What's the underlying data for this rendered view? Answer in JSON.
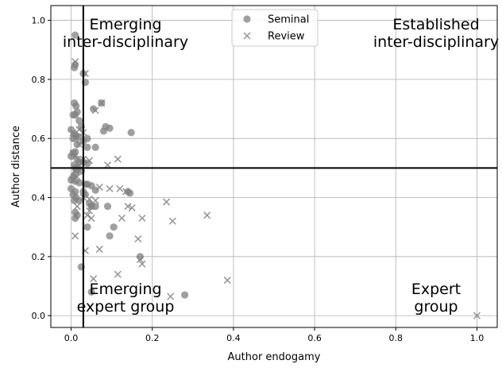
{
  "chart_data": {
    "type": "scatter",
    "xlabel": "Author endogamy",
    "ylabel": "Author distance",
    "xlim": [
      -0.05,
      1.05
    ],
    "ylim": [
      -0.04,
      1.05
    ],
    "x_ticks": [
      "0.0",
      "0.2",
      "0.4",
      "0.6",
      "0.8",
      "1.0"
    ],
    "y_ticks": [
      "0.0",
      "0.2",
      "0.4",
      "0.6",
      "0.8",
      "1.0"
    ],
    "grid": true,
    "legend_position": "top-center",
    "reference_lines": {
      "vertical_x": 0.03,
      "horizontal_y": 0.5
    },
    "quadrant_labels": [
      {
        "line1": "Emerging",
        "line2": "inter-disciplinary",
        "position": "top-left"
      },
      {
        "line1": "Established",
        "line2": "inter-disciplinary",
        "position": "top-right"
      },
      {
        "line1": "Emerging",
        "line2": "expert group",
        "position": "bottom-left"
      },
      {
        "line1": "Expert",
        "line2": "group",
        "position": "bottom-right"
      }
    ],
    "series": [
      {
        "name": "Seminal",
        "marker": "circle",
        "color": "#808080",
        "points": [
          [
            0.01,
            0.95
          ],
          [
            0.01,
            0.85
          ],
          [
            0.008,
            0.84
          ],
          [
            0.03,
            0.82
          ],
          [
            0.035,
            0.79
          ],
          [
            0.008,
            0.72
          ],
          [
            0.012,
            0.71
          ],
          [
            0.015,
            0.69
          ],
          [
            0.01,
            0.68
          ],
          [
            0.005,
            0.68
          ],
          [
            0.055,
            0.7
          ],
          [
            0.075,
            0.72
          ],
          [
            0.02,
            0.66
          ],
          [
            0.025,
            0.64
          ],
          [
            0.085,
            0.64
          ],
          [
            0.095,
            0.635
          ],
          [
            0.08,
            0.625
          ],
          [
            0.148,
            0.62
          ],
          [
            0.0,
            0.63
          ],
          [
            0.008,
            0.615
          ],
          [
            0.012,
            0.61
          ],
          [
            0.02,
            0.605
          ],
          [
            0.005,
            0.6
          ],
          [
            0.04,
            0.6
          ],
          [
            0.03,
            0.59
          ],
          [
            0.015,
            0.58
          ],
          [
            0.04,
            0.57
          ],
          [
            0.06,
            0.57
          ],
          [
            0.01,
            0.555
          ],
          [
            0.005,
            0.55
          ],
          [
            0.0,
            0.54
          ],
          [
            0.015,
            0.53
          ],
          [
            0.02,
            0.52
          ],
          [
            0.03,
            0.52
          ],
          [
            0.04,
            0.515
          ],
          [
            0.008,
            0.51
          ],
          [
            0.01,
            0.5
          ],
          [
            0.015,
            0.495
          ],
          [
            0.025,
            0.49
          ],
          [
            0.01,
            0.48
          ],
          [
            0.005,
            0.47
          ],
          [
            0.0,
            0.46
          ],
          [
            0.01,
            0.455
          ],
          [
            0.02,
            0.45
          ],
          [
            0.035,
            0.445
          ],
          [
            0.04,
            0.445
          ],
          [
            0.05,
            0.44
          ],
          [
            0.0,
            0.43
          ],
          [
            0.01,
            0.42
          ],
          [
            0.03,
            0.42
          ],
          [
            0.06,
            0.425
          ],
          [
            0.14,
            0.42
          ],
          [
            0.145,
            0.415
          ],
          [
            0.035,
            0.41
          ],
          [
            0.005,
            0.41
          ],
          [
            0.012,
            0.4
          ],
          [
            0.008,
            0.39
          ],
          [
            0.02,
            0.39
          ],
          [
            0.045,
            0.38
          ],
          [
            0.05,
            0.37
          ],
          [
            0.06,
            0.37
          ],
          [
            0.09,
            0.37
          ],
          [
            0.01,
            0.35
          ],
          [
            0.015,
            0.34
          ],
          [
            0.01,
            0.33
          ],
          [
            0.04,
            0.3
          ],
          [
            0.105,
            0.3
          ],
          [
            0.095,
            0.27
          ],
          [
            0.17,
            0.2
          ],
          [
            0.025,
            0.165
          ],
          [
            0.05,
            0.08
          ],
          [
            0.28,
            0.07
          ]
        ]
      },
      {
        "name": "Review",
        "marker": "x",
        "color": "#808080",
        "points": [
          [
            0.01,
            0.86
          ],
          [
            0.035,
            0.82
          ],
          [
            0.075,
            0.72
          ],
          [
            0.06,
            0.695
          ],
          [
            0.02,
            0.63
          ],
          [
            0.03,
            0.62
          ],
          [
            0.005,
            0.62
          ],
          [
            0.01,
            0.6
          ],
          [
            0.02,
            0.58
          ],
          [
            0.005,
            0.55
          ],
          [
            0.01,
            0.54
          ],
          [
            0.03,
            0.53
          ],
          [
            0.045,
            0.525
          ],
          [
            0.115,
            0.53
          ],
          [
            0.02,
            0.51
          ],
          [
            0.025,
            0.5
          ],
          [
            0.09,
            0.51
          ],
          [
            0.01,
            0.49
          ],
          [
            0.015,
            0.47
          ],
          [
            0.005,
            0.46
          ],
          [
            0.095,
            0.43
          ],
          [
            0.12,
            0.43
          ],
          [
            0.07,
            0.435
          ],
          [
            0.135,
            0.42
          ],
          [
            0.03,
            0.4
          ],
          [
            0.045,
            0.395
          ],
          [
            0.06,
            0.39
          ],
          [
            0.05,
            0.37
          ],
          [
            0.14,
            0.37
          ],
          [
            0.15,
            0.365
          ],
          [
            0.015,
            0.37
          ],
          [
            0.045,
            0.355
          ],
          [
            0.04,
            0.34
          ],
          [
            0.05,
            0.33
          ],
          [
            0.125,
            0.33
          ],
          [
            0.175,
            0.33
          ],
          [
            0.01,
            0.27
          ],
          [
            0.235,
            0.385
          ],
          [
            0.335,
            0.34
          ],
          [
            0.25,
            0.32
          ],
          [
            0.165,
            0.26
          ],
          [
            0.07,
            0.225
          ],
          [
            0.035,
            0.22
          ],
          [
            0.17,
            0.19
          ],
          [
            0.175,
            0.175
          ],
          [
            0.115,
            0.14
          ],
          [
            0.055,
            0.125
          ],
          [
            0.385,
            0.12
          ],
          [
            0.245,
            0.065
          ],
          [
            1.0,
            0.0
          ]
        ]
      }
    ]
  }
}
